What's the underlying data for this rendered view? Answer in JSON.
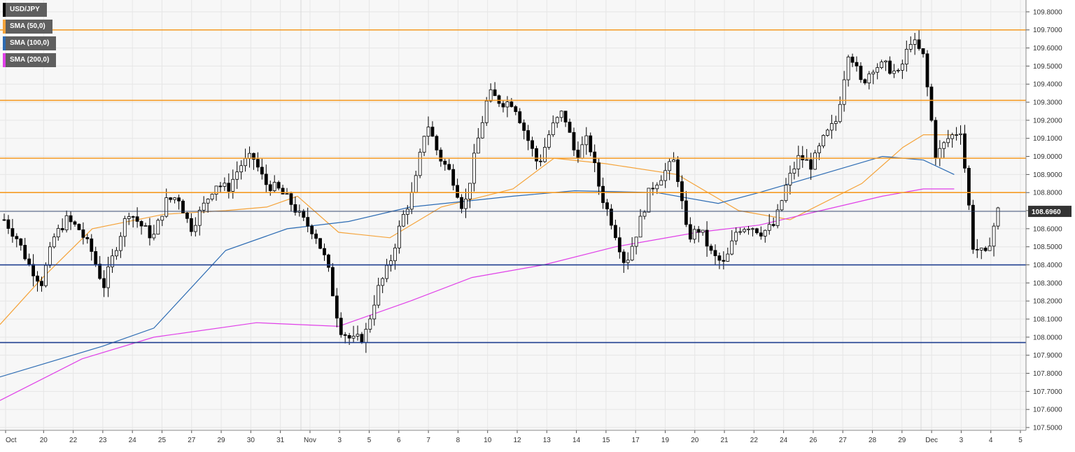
{
  "colors": {
    "background": "#ffffff",
    "plot_area": "#f7f7f7",
    "grid": "#e6e6e6",
    "orange_level": "#f59a23",
    "blue_level": "#1f3f8f",
    "sma50": "#f5a33a",
    "sma100": "#2c6bb3",
    "sma200": "#e040e8",
    "candle_up_fill": "#ffffff",
    "candle_down_fill": "#000000",
    "candle_stroke": "#000000",
    "price_tag": "#333333"
  },
  "legend": [
    {
      "label": "USD/JPY",
      "color": "#000000"
    },
    {
      "label": "SMA (50,0)",
      "color": "#f5a33a"
    },
    {
      "label": "SMA (100,0)",
      "color": "#2c6bb3"
    },
    {
      "label": "SMA (200,0)",
      "color": "#e040e8"
    }
  ],
  "chart_data": {
    "type": "candlestick",
    "symbol": "USD/JPY",
    "ylim": [
      107.5,
      109.85
    ],
    "y_ticks": [
      "107.5000",
      "107.6000",
      "107.7000",
      "107.8000",
      "107.9000",
      "108.0000",
      "108.1000",
      "108.2000",
      "108.3000",
      "108.4000",
      "108.5000",
      "108.6000",
      "108.7000",
      "108.8000",
      "108.9000",
      "109.0000",
      "109.1000",
      "109.2000",
      "109.3000",
      "109.4000",
      "109.5000",
      "109.6000",
      "109.7000",
      "109.8000"
    ],
    "x_labels": [
      "Oct",
      "20",
      "22",
      "23",
      "24",
      "25",
      "27",
      "29",
      "30",
      "31",
      "Nov",
      "3",
      "5",
      "6",
      "7",
      "8",
      "10",
      "12",
      "13",
      "14",
      "15",
      "17",
      "19",
      "20",
      "21",
      "22",
      "24",
      "26",
      "27",
      "28",
      "29",
      "Dec",
      "3",
      "4",
      "5"
    ],
    "current_price": "108.6960",
    "levels": [
      {
        "value": 109.7,
        "color": "orange"
      },
      {
        "value": 109.31,
        "color": "orange"
      },
      {
        "value": 108.99,
        "color": "orange"
      },
      {
        "value": 108.8,
        "color": "orange"
      },
      {
        "value": 108.4,
        "color": "blue"
      },
      {
        "value": 107.97,
        "color": "blue"
      }
    ],
    "price_anchors": [
      108.65,
      108.55,
      108.4,
      108.3,
      108.55,
      108.65,
      108.6,
      108.48,
      108.28,
      108.5,
      108.7,
      108.62,
      108.55,
      108.75,
      108.78,
      108.6,
      108.72,
      108.85,
      108.82,
      108.95,
      109.0,
      108.85,
      108.82,
      108.75,
      108.65,
      108.58,
      108.4,
      108.05,
      107.98,
      108.0,
      108.25,
      108.4,
      108.65,
      108.82,
      109.2,
      109.0,
      108.9,
      108.7,
      109.05,
      109.35,
      109.3,
      109.3,
      109.12,
      108.95,
      109.15,
      109.25,
      109.0,
      109.1,
      108.8,
      108.62,
      108.4,
      108.6,
      108.82,
      108.9,
      108.98,
      108.55,
      108.6,
      108.45,
      108.4,
      108.6,
      108.62,
      108.58,
      108.62,
      108.85,
      109.0,
      108.95,
      109.1,
      109.2,
      109.6,
      109.4,
      109.5,
      109.5,
      109.45,
      109.65,
      109.55,
      109.0,
      109.1,
      109.15,
      108.5,
      108.45,
      108.7
    ],
    "series": [
      {
        "name": "SMA (50,0)",
        "points": [
          [
            0,
            108.07
          ],
          [
            0.04,
            108.32
          ],
          [
            0.09,
            108.6
          ],
          [
            0.16,
            108.68
          ],
          [
            0.22,
            108.7
          ],
          [
            0.26,
            108.72
          ],
          [
            0.29,
            108.78
          ],
          [
            0.33,
            108.58
          ],
          [
            0.38,
            108.55
          ],
          [
            0.43,
            108.72
          ],
          [
            0.5,
            108.82
          ],
          [
            0.54,
            108.99
          ],
          [
            0.59,
            108.96
          ],
          [
            0.66,
            108.9
          ],
          [
            0.72,
            108.7
          ],
          [
            0.77,
            108.65
          ],
          [
            0.84,
            108.85
          ],
          [
            0.88,
            109.05
          ],
          [
            0.9,
            109.12
          ],
          [
            0.93,
            109.12
          ]
        ]
      },
      {
        "name": "SMA (100,0)",
        "points": [
          [
            0,
            107.78
          ],
          [
            0.1,
            107.95
          ],
          [
            0.15,
            108.05
          ],
          [
            0.22,
            108.48
          ],
          [
            0.28,
            108.6
          ],
          [
            0.34,
            108.64
          ],
          [
            0.4,
            108.72
          ],
          [
            0.5,
            108.78
          ],
          [
            0.56,
            108.81
          ],
          [
            0.64,
            108.8
          ],
          [
            0.7,
            108.74
          ],
          [
            0.74,
            108.8
          ],
          [
            0.8,
            108.9
          ],
          [
            0.86,
            109.0
          ],
          [
            0.9,
            108.98
          ],
          [
            0.93,
            108.9
          ]
        ]
      },
      {
        "name": "SMA (200,0)",
        "points": [
          [
            0,
            107.65
          ],
          [
            0.08,
            107.88
          ],
          [
            0.15,
            108.0
          ],
          [
            0.25,
            108.08
          ],
          [
            0.33,
            108.06
          ],
          [
            0.4,
            108.2
          ],
          [
            0.46,
            108.33
          ],
          [
            0.53,
            108.4
          ],
          [
            0.6,
            108.5
          ],
          [
            0.68,
            108.58
          ],
          [
            0.74,
            108.62
          ],
          [
            0.8,
            108.7
          ],
          [
            0.86,
            108.78
          ],
          [
            0.9,
            108.82
          ],
          [
            0.93,
            108.82
          ]
        ]
      }
    ]
  }
}
